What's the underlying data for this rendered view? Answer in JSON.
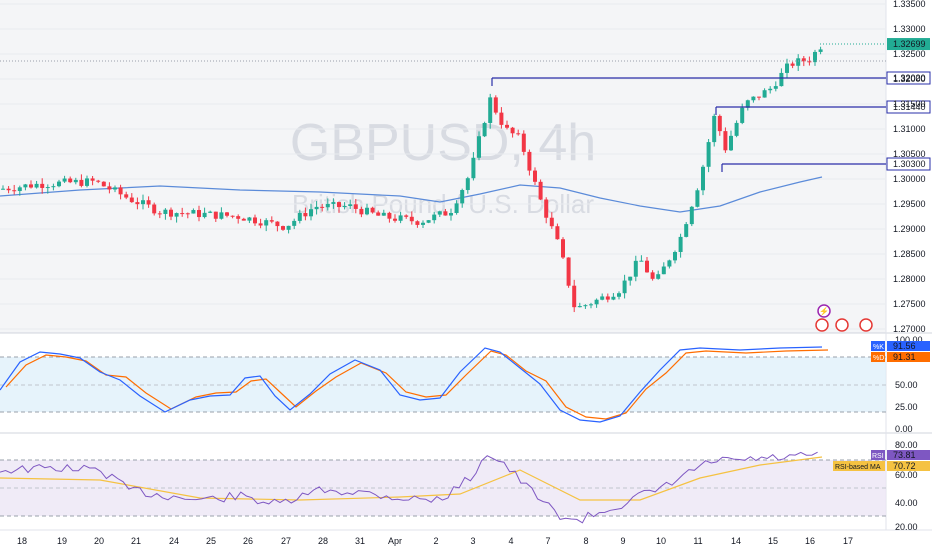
{
  "chart": {
    "symbol": "GBPUSD, 4h",
    "subtitle": "British Pound / U.S. Dollar",
    "colors": {
      "up": "#22ab94",
      "down": "#f23645",
      "ma": "#5b8bd9",
      "level": "#2a2fa8",
      "k": "#2962ff",
      "d": "#ff6d00",
      "rsi": "#7e57c2",
      "rsi_ma": "#f5c242"
    }
  },
  "price_axis": {
    "ticks": [
      "1.33500",
      "1.33000",
      "1.32500",
      "1.32000",
      "1.31500",
      "1.31000",
      "1.30500",
      "1.30000",
      "1.29500",
      "1.29000",
      "1.28500",
      "1.28000",
      "1.27500",
      "1.27000"
    ],
    "current": "1.32699",
    "levels": [
      "1.32020",
      "1.31440",
      "1.30300"
    ]
  },
  "stoch": {
    "ticks": [
      "100.00",
      "75.00",
      "50.00",
      "25.00",
      "0.00"
    ],
    "k_label": "%K",
    "k_value": "91.56",
    "d_label": "%D",
    "d_value": "91.31"
  },
  "rsi": {
    "ticks": [
      "80.00",
      "60.00",
      "40.00",
      "20.00"
    ],
    "rsi_label": "RSI",
    "rsi_value": "73.81",
    "ma_label": "RSI-based MA",
    "ma_value": "70.72"
  },
  "time_axis": [
    "18",
    "19",
    "20",
    "21",
    "24",
    "25",
    "26",
    "27",
    "28",
    "31",
    "Apr",
    "2",
    "3",
    "4",
    "7",
    "8",
    "9",
    "10",
    "11",
    "14",
    "15",
    "16",
    "17"
  ],
  "chart_data": {
    "type": "candlestick",
    "title": "GBPUSD, 4h",
    "x": [
      "18",
      "19",
      "20",
      "21",
      "24",
      "25",
      "26",
      "27",
      "28",
      "31",
      "Apr",
      "2",
      "3",
      "4",
      "7",
      "8",
      "9",
      "10",
      "11",
      "14",
      "15",
      "16"
    ],
    "close_approx": [
      1.2985,
      1.299,
      1.2975,
      1.295,
      1.2935,
      1.2925,
      1.2915,
      1.2935,
      1.2945,
      1.2935,
      1.2925,
      1.295,
      1.316,
      1.309,
      1.278,
      1.274,
      1.28,
      1.296,
      1.309,
      1.319,
      1.324,
      1.327
    ],
    "horizontal_levels": [
      1.3202,
      1.3144,
      1.303
    ],
    "ylim": [
      1.268,
      1.336
    ]
  }
}
